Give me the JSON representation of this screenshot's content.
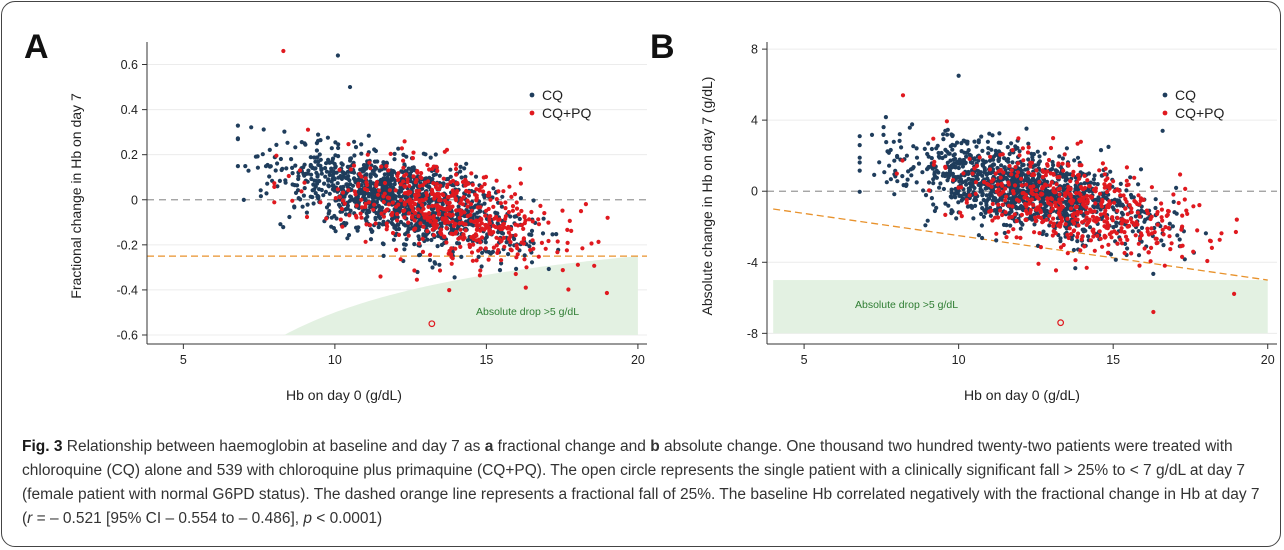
{
  "panels": [
    {
      "letter": "A",
      "ylabel": "Fractional change in Hb on day 7",
      "xlabel": "Hb on day 0 (g/dL)",
      "yticks": [
        0.6,
        0.4,
        0.2,
        0,
        -0.2,
        -0.4,
        -0.6
      ],
      "ytick_labels": [
        "0.6",
        "0.4",
        "0.2",
        "0",
        "-0.2",
        "-0.4",
        "-0.6"
      ],
      "xticks": [
        5,
        10,
        15,
        20
      ],
      "xtick_labels": [
        "5",
        "10",
        "15",
        "20"
      ],
      "legend": [
        {
          "label": "CQ"
        },
        {
          "label": "CQ+PQ"
        }
      ],
      "region_label": "Absolute drop >5 g/dL"
    },
    {
      "letter": "B",
      "ylabel": "Absolute change in Hb on day 7 (g/dL)",
      "xlabel": "Hb on day 0 (g/dL)",
      "yticks": [
        8,
        4,
        0,
        -4,
        -8
      ],
      "ytick_labels": [
        "8",
        "4",
        "0",
        "-4",
        "-8"
      ],
      "xticks": [
        5,
        10,
        15,
        20
      ],
      "xtick_labels": [
        "5",
        "10",
        "15",
        "20"
      ],
      "legend": [
        {
          "label": "CQ"
        },
        {
          "label": "CQ+PQ"
        }
      ],
      "region_label": "Absolute drop >5 g/dL"
    }
  ],
  "colors": {
    "cq": "#1f3d5c",
    "cqpq": "#e0191f",
    "zero_line": "#999999",
    "threshold_line": "#e8922c",
    "region_fill": "#e3f1e2",
    "region_text": "#2e7d32"
  },
  "chart_data": [
    {
      "type": "scatter",
      "title": "",
      "xlabel": "Hb on day 0 (g/dL)",
      "ylabel": "Fractional change in Hb on day 7",
      "xlim": [
        3.8,
        20.3
      ],
      "ylim": [
        -0.64,
        0.7
      ],
      "series": [
        {
          "name": "CQ",
          "n": 1222,
          "center": [
            12.2,
            0.0
          ],
          "x_sd": 2.0,
          "slope": -0.035,
          "noise_sd": 0.09,
          "x_range": [
            6.8,
            18.0
          ]
        },
        {
          "name": "CQ+PQ",
          "n": 539,
          "center": [
            13.7,
            -0.06
          ],
          "x_sd": 1.9,
          "slope": -0.028,
          "noise_sd": 0.1,
          "x_range": [
            8.0,
            19.0
          ]
        }
      ],
      "notable_points": [
        {
          "label": "open-circle patient",
          "x": 13.2,
          "y": -0.55,
          "marker": "open"
        },
        {
          "x": 8.3,
          "y": 0.66,
          "series": "CQ+PQ"
        },
        {
          "x": 10.1,
          "y": 0.64,
          "series": "CQ"
        },
        {
          "x": 10.5,
          "y": 0.5,
          "series": "CQ"
        },
        {
          "x": 19.0,
          "y": -0.08,
          "series": "CQ+PQ"
        },
        {
          "x": 16.3,
          "y": -0.39,
          "series": "CQ+PQ"
        }
      ],
      "reference_lines": [
        {
          "label": "zero",
          "y": 0,
          "style": "dashed"
        },
        {
          "label": "fractional fall of 25%",
          "y": -0.25,
          "style": "dashed"
        }
      ],
      "region": {
        "label": "Absolute drop >5 g/dL",
        "definition": "change < -5/Hb0",
        "x_from": 8.3,
        "x_to": 20.0
      },
      "legend_placement": "top-right",
      "grid": true
    },
    {
      "type": "scatter",
      "title": "",
      "xlabel": "Hb on day 0 (g/dL)",
      "ylabel": "Absolute change in Hb on day 7 (g/dL)",
      "xlim": [
        3.8,
        20.3
      ],
      "ylim": [
        -8.6,
        8.4
      ],
      "series": [
        {
          "name": "CQ",
          "n": 1222,
          "center": [
            12.2,
            0.0
          ],
          "x_sd": 2.0,
          "slope": -0.4,
          "noise_sd": 1.1,
          "x_range": [
            6.8,
            18.0
          ]
        },
        {
          "name": "CQ+PQ",
          "n": 539,
          "center": [
            13.7,
            -0.8
          ],
          "x_sd": 1.9,
          "slope": -0.35,
          "noise_sd": 1.2,
          "x_range": [
            8.0,
            19.0
          ]
        }
      ],
      "notable_points": [
        {
          "label": "open-circle patient",
          "x": 13.3,
          "y": -7.4,
          "marker": "open"
        },
        {
          "x": 10.0,
          "y": 6.5,
          "series": "CQ"
        },
        {
          "x": 8.2,
          "y": 5.4,
          "series": "CQ+PQ"
        },
        {
          "x": 16.6,
          "y": 3.4,
          "series": "CQ"
        },
        {
          "x": 19.0,
          "y": -1.6,
          "series": "CQ+PQ"
        },
        {
          "x": 16.3,
          "y": -6.8,
          "series": "CQ+PQ"
        }
      ],
      "reference_lines": [
        {
          "label": "zero",
          "y": 0,
          "style": "dashed"
        },
        {
          "label": "fractional fall of 25%",
          "from": [
            4.0,
            -1.0
          ],
          "to": [
            20.0,
            -5.0
          ],
          "style": "dashed"
        }
      ],
      "region": {
        "label": "Absolute drop >5 g/dL",
        "y_from": -8,
        "y_to": -5,
        "x_from": 4.0,
        "x_to": 20.0
      },
      "legend_placement": "top-right",
      "grid": true
    }
  ],
  "caption": {
    "label": "Fig. 3",
    "segments": [
      {
        "t": " Relationship between haemoglobin at baseline and day 7 as "
      },
      {
        "t": "a",
        "b": true
      },
      {
        "t": " fractional change and "
      },
      {
        "t": "b",
        "b": true
      },
      {
        "t": " absolute change. One thousand two hundred twenty-two patients were treated with chloroquine (CQ) alone and 539 with chloroquine plus primaquine (CQ+PQ). The open circle represents the single patient with a clinically significant fall > 25% to < 7 g/dL at day 7 (female patient with normal G6PD status). The dashed orange line represents a fractional fall of 25%. The baseline Hb correlated negatively with the fractional change in Hb at day 7 ("
      },
      {
        "t": "r",
        "i": true
      },
      {
        "t": " = – 0.521 [95% CI – 0.554 to – 0.486], "
      },
      {
        "t": "p",
        "i": true
      },
      {
        "t": " < 0.0001)"
      }
    ]
  }
}
